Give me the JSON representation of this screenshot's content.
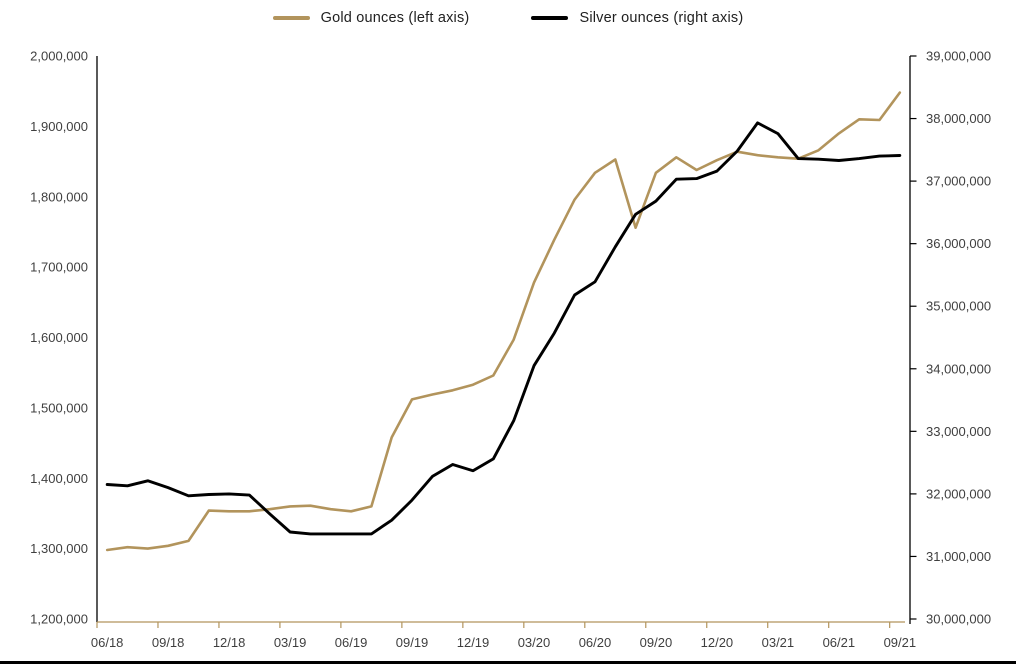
{
  "legend": {
    "items": [
      {
        "label": "Gold ounces (left axis)",
        "color": "#b2945c"
      },
      {
        "label": "Silver ounces (right axis)",
        "color": "#000000"
      }
    ]
  },
  "chart_data": {
    "type": "line",
    "title": "",
    "legend_position": "top",
    "grid": false,
    "x_categories": [
      "06/18",
      "07/18",
      "08/18",
      "09/18",
      "10/18",
      "11/18",
      "12/18",
      "01/19",
      "02/19",
      "03/19",
      "04/19",
      "05/19",
      "06/19",
      "07/19",
      "08/19",
      "09/19",
      "10/19",
      "11/19",
      "12/19",
      "01/20",
      "02/20",
      "03/20",
      "04/20",
      "05/20",
      "06/20",
      "07/20",
      "08/20",
      "09/20",
      "10/20",
      "11/20",
      "12/20",
      "01/21",
      "02/21",
      "03/21",
      "04/21",
      "05/21",
      "06/21",
      "07/21",
      "08/21",
      "09/21"
    ],
    "x_tick_labels": [
      "06/18",
      "09/18",
      "12/18",
      "03/19",
      "06/19",
      "09/19",
      "12/19",
      "03/20",
      "06/20",
      "09/20",
      "12/20",
      "03/21",
      "06/21",
      "09/21"
    ],
    "series": [
      {
        "name": "Gold ounces (left axis)",
        "axis": "left",
        "color": "#b2945c",
        "values": [
          1298000,
          1302000,
          1300000,
          1304000,
          1311000,
          1354000,
          1353000,
          1353000,
          1356000,
          1360000,
          1361000,
          1356000,
          1353000,
          1360000,
          1458000,
          1512000,
          1519000,
          1525000,
          1533000,
          1546000,
          1597000,
          1678000,
          1739000,
          1796000,
          1834000,
          1853000,
          1756000,
          1834000,
          1856000,
          1838000,
          1852000,
          1864000,
          1859000,
          1856000,
          1854000,
          1866000,
          1890000,
          1910000,
          1909000,
          1948000
        ]
      },
      {
        "name": "Silver ounces (right axis)",
        "axis": "right",
        "color": "#000000",
        "values": [
          32150000,
          32130000,
          32210000,
          32100000,
          31970000,
          31990000,
          32000000,
          31980000,
          31680000,
          31390000,
          31360000,
          31360000,
          31360000,
          31360000,
          31580000,
          31900000,
          32280000,
          32470000,
          32370000,
          32560000,
          33170000,
          34050000,
          34570000,
          35180000,
          35390000,
          35950000,
          36470000,
          36680000,
          37030000,
          37040000,
          37160000,
          37480000,
          37930000,
          37760000,
          37360000,
          37350000,
          37330000,
          37360000,
          37400000,
          37410000
        ]
      }
    ],
    "left_axis": {
      "min": 1200000,
      "max": 2000000,
      "step": 100000,
      "tick_labels": [
        "1,200,000",
        "1,300,000",
        "1,400,000",
        "1,500,000",
        "1,600,000",
        "1,700,000",
        "1,800,000",
        "1,900,000",
        "2,000,000"
      ]
    },
    "right_axis": {
      "min": 30000000,
      "max": 39000000,
      "step": 1000000,
      "tick_labels": [
        "30,000,000",
        "31,000,000",
        "32,000,000",
        "33,000,000",
        "34,000,000",
        "35,000,000",
        "36,000,000",
        "37,000,000",
        "38,000,000",
        "39,000,000"
      ]
    },
    "x_axis_color": "#b2945c",
    "y_axis_color": "#000000",
    "label_color": "#3f3f3f"
  }
}
